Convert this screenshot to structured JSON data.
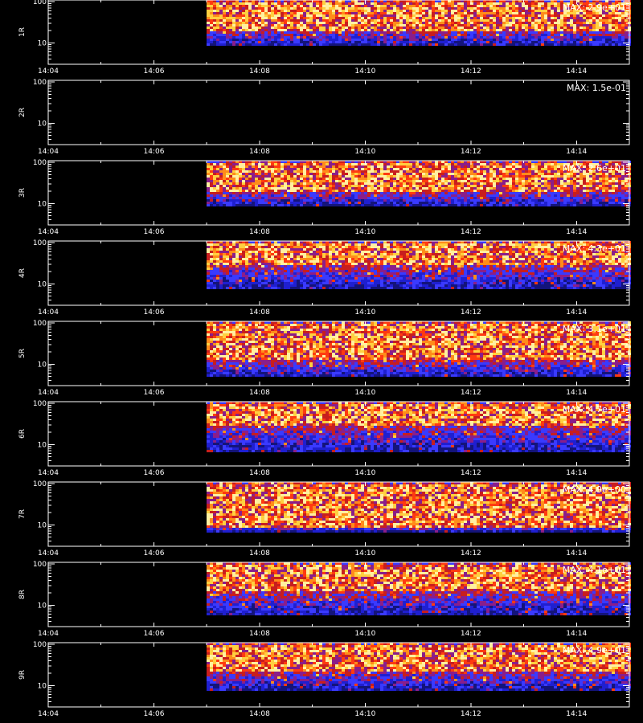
{
  "chart_data": {
    "type": "heatmap",
    "x_range": [
      "14:04",
      "14:15"
    ],
    "x_tick_labels": [
      "14:04",
      "14:06",
      "14:08",
      "14:10",
      "14:12",
      "14:14"
    ],
    "x_tick_values_min": [
      0,
      2,
      4,
      6,
      8,
      10
    ],
    "y_scale": "log",
    "y_range": [
      3,
      110
    ],
    "y_tick_labels": [
      "10",
      "100"
    ],
    "data_start": "14:07",
    "panels": [
      {
        "label": "1R",
        "max_label": "MAX: 2.9e+01",
        "has_data": true,
        "y_lo": 9,
        "y_hi": 110,
        "hot_lo": 20,
        "hot_hi": 100
      },
      {
        "label": "2R",
        "max_label": "MAX: 1.5e-01",
        "has_data": false
      },
      {
        "label": "3R",
        "max_label": "MAX: 2.6e+01",
        "has_data": true,
        "y_lo": 9,
        "y_hi": 110,
        "hot_lo": 20,
        "hot_hi": 100
      },
      {
        "label": "4R",
        "max_label": "MAX: 4.3e+01",
        "has_data": true,
        "y_lo": 8,
        "y_hi": 110,
        "hot_lo": 28,
        "hot_hi": 100
      },
      {
        "label": "5R",
        "max_label": "MAX: 3.1e+01",
        "has_data": true,
        "y_lo": 5,
        "y_hi": 110,
        "hot_lo": 12,
        "hot_hi": 100
      },
      {
        "label": "6R",
        "max_label": "MAX: 4.7e+01",
        "has_data": true,
        "y_lo": 7,
        "y_hi": 110,
        "hot_lo": 30,
        "hot_hi": 100
      },
      {
        "label": "7R",
        "max_label": "MAX: 4.9e+00",
        "has_data": true,
        "y_lo": 7,
        "y_hi": 110,
        "hot_lo": 9,
        "hot_hi": 100
      },
      {
        "label": "8R",
        "max_label": "MAX: 4.1e+01",
        "has_data": true,
        "y_lo": 6,
        "y_hi": 110,
        "hot_lo": 22,
        "hot_hi": 100
      },
      {
        "label": "9R",
        "max_label": "MAX: 4.9e+01",
        "has_data": true,
        "y_lo": 8,
        "y_hi": 110,
        "hot_lo": 22,
        "hot_hi": 100
      }
    ],
    "colors": {
      "background": "#000000",
      "axis": "#ffffff",
      "palette": [
        "#14147a",
        "#1f1fd0",
        "#3a3aff",
        "#8a1e8a",
        "#c81e1e",
        "#ff3a10",
        "#ff8c1a",
        "#ffd040",
        "#fff0a0"
      ]
    }
  }
}
